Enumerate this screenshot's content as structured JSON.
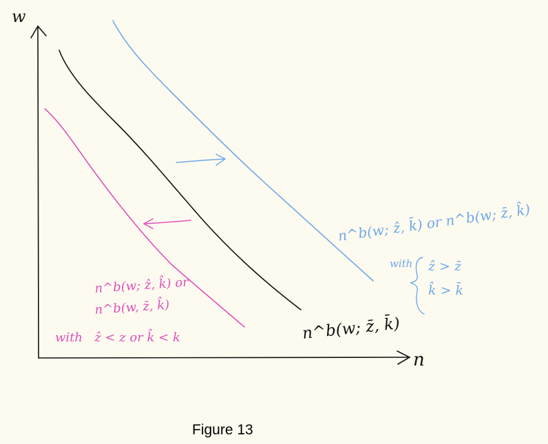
{
  "figure": {
    "caption": "Figure 13",
    "y_axis_label": "w",
    "x_axis_label": "n"
  },
  "curves": {
    "baseline": {
      "label": "n^b(w; z̄, k̄)",
      "color": "#111111"
    },
    "higher": {
      "label": "n^b(w; ẑ, k̄) or n^b(w; z̄, k̂)",
      "condition_prefix": "with",
      "condition_lines": [
        "ẑ > z̄",
        "k̂ > k̄"
      ],
      "color": "#6fa8e8"
    },
    "lower": {
      "label_line1": "n^b(w; ẑ, k̂) or",
      "label_line2": "n^b(w, z̄, k̂)",
      "condition": "with   ẑ < z or k̂ < k",
      "color": "#e04fb8"
    }
  }
}
